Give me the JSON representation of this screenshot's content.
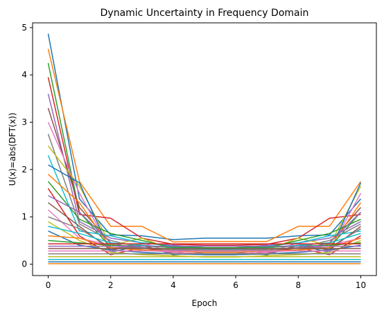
{
  "chart_data": {
    "type": "line",
    "title": "Dynamic Uncertainty in Frequency Domain",
    "xlabel": "Epoch",
    "ylabel": "U(x)=abs(DFT(x))",
    "xlim": [
      -0.5,
      10.5
    ],
    "ylim": [
      -0.24,
      5.1
    ],
    "x": [
      0,
      1,
      2,
      3,
      4,
      5,
      6,
      7,
      8,
      9,
      10
    ],
    "xticks": [
      0,
      2,
      4,
      6,
      8,
      10
    ],
    "yticks": [
      0,
      1,
      2,
      3,
      4,
      5
    ],
    "grid": false,
    "legend": "none",
    "colors": [
      "#1f77b4",
      "#ff7f0e",
      "#2ca02c",
      "#d62728",
      "#9467bd",
      "#8c564b",
      "#e377c2",
      "#7f7f7f",
      "#bcbd22",
      "#17becf"
    ],
    "series": [
      {
        "values": [
          4.87,
          1.38,
          0.62,
          0.6,
          0.52,
          0.55,
          0.55,
          0.55,
          0.6,
          0.62,
          1.38
        ]
      },
      {
        "values": [
          4.55,
          1.75,
          0.8,
          0.8,
          0.47,
          0.48,
          0.48,
          0.48,
          0.8,
          0.8,
          1.75
        ]
      },
      {
        "values": [
          4.25,
          1.1,
          0.35,
          0.3,
          0.3,
          0.28,
          0.28,
          0.3,
          0.3,
          0.35,
          1.1
        ]
      },
      {
        "values": [
          3.95,
          1.05,
          0.97,
          0.55,
          0.42,
          0.4,
          0.4,
          0.42,
          0.55,
          0.97,
          1.05
        ]
      },
      {
        "values": [
          3.6,
          0.9,
          0.55,
          0.45,
          0.4,
          0.35,
          0.35,
          0.4,
          0.45,
          0.55,
          0.9
        ]
      },
      {
        "values": [
          3.3,
          1.2,
          0.45,
          0.4,
          0.35,
          0.35,
          0.35,
          0.35,
          0.4,
          0.45,
          1.2
        ]
      },
      {
        "values": [
          3.0,
          1.5,
          0.3,
          0.45,
          0.25,
          0.3,
          0.3,
          0.25,
          0.45,
          0.3,
          1.5
        ]
      },
      {
        "values": [
          2.75,
          0.85,
          0.5,
          0.35,
          0.32,
          0.3,
          0.3,
          0.32,
          0.35,
          0.5,
          0.85
        ]
      },
      {
        "values": [
          2.5,
          1.65,
          0.4,
          0.55,
          0.3,
          0.28,
          0.28,
          0.3,
          0.55,
          0.4,
          1.65
        ]
      },
      {
        "values": [
          2.3,
          0.7,
          0.6,
          0.45,
          0.38,
          0.35,
          0.35,
          0.38,
          0.45,
          0.6,
          0.7
        ]
      },
      {
        "values": [
          2.1,
          1.72,
          0.25,
          0.4,
          0.2,
          0.25,
          0.25,
          0.2,
          0.4,
          0.25,
          1.72
        ]
      },
      {
        "values": [
          1.9,
          1.3,
          0.35,
          0.3,
          0.25,
          0.22,
          0.22,
          0.25,
          0.3,
          0.35,
          1.3
        ]
      },
      {
        "values": [
          1.75,
          0.95,
          0.65,
          0.5,
          0.35,
          0.33,
          0.33,
          0.35,
          0.5,
          0.65,
          0.95
        ]
      },
      {
        "values": [
          1.6,
          0.6,
          0.2,
          0.35,
          0.25,
          0.2,
          0.2,
          0.25,
          0.35,
          0.2,
          0.6
        ]
      },
      {
        "values": [
          1.45,
          1.1,
          0.45,
          0.3,
          0.28,
          0.25,
          0.25,
          0.28,
          0.3,
          0.45,
          1.1
        ]
      },
      {
        "values": [
          1.3,
          0.8,
          0.3,
          0.4,
          0.22,
          0.2,
          0.2,
          0.22,
          0.4,
          0.3,
          0.8
        ]
      },
      {
        "values": [
          1.15,
          0.55,
          0.4,
          0.3,
          0.25,
          0.22,
          0.22,
          0.25,
          0.3,
          0.4,
          0.55
        ]
      },
      {
        "values": [
          1.0,
          0.75,
          0.35,
          0.35,
          0.3,
          0.28,
          0.28,
          0.3,
          0.35,
          0.35,
          0.75
        ]
      },
      {
        "values": [
          0.9,
          0.5,
          0.25,
          0.2,
          0.18,
          0.15,
          0.15,
          0.18,
          0.2,
          0.25,
          0.5
        ]
      },
      {
        "values": [
          0.8,
          0.65,
          0.45,
          0.4,
          0.35,
          0.32,
          0.32,
          0.35,
          0.4,
          0.45,
          0.65
        ]
      },
      {
        "values": [
          0.7,
          0.4,
          0.3,
          0.25,
          0.22,
          0.2,
          0.2,
          0.22,
          0.25,
          0.3,
          0.4
        ]
      },
      {
        "values": [
          0.6,
          0.55,
          0.35,
          0.3,
          0.28,
          0.25,
          0.25,
          0.28,
          0.3,
          0.35,
          0.55
        ]
      },
      {
        "values": [
          0.5,
          0.45,
          0.4,
          0.38,
          0.36,
          0.35,
          0.35,
          0.36,
          0.38,
          0.4,
          0.45
        ]
      },
      {
        "values": [
          0.43,
          0.43,
          0.43,
          0.43,
          0.43,
          0.43,
          0.43,
          0.43,
          0.43,
          0.43,
          0.43
        ]
      },
      {
        "values": [
          0.38,
          0.38,
          0.38,
          0.38,
          0.38,
          0.38,
          0.38,
          0.38,
          0.38,
          0.38,
          0.38
        ]
      },
      {
        "values": [
          0.33,
          0.33,
          0.33,
          0.33,
          0.33,
          0.33,
          0.33,
          0.33,
          0.33,
          0.33,
          0.33
        ]
      },
      {
        "values": [
          0.28,
          0.28,
          0.28,
          0.28,
          0.28,
          0.28,
          0.28,
          0.28,
          0.28,
          0.28,
          0.28
        ]
      },
      {
        "values": [
          0.22,
          0.22,
          0.22,
          0.22,
          0.22,
          0.22,
          0.22,
          0.22,
          0.22,
          0.22,
          0.22
        ]
      },
      {
        "values": [
          0.16,
          0.16,
          0.16,
          0.16,
          0.16,
          0.16,
          0.16,
          0.16,
          0.16,
          0.16,
          0.16
        ]
      },
      {
        "values": [
          0.1,
          0.1,
          0.1,
          0.1,
          0.1,
          0.1,
          0.1,
          0.1,
          0.1,
          0.1,
          0.1
        ]
      },
      {
        "values": [
          0.05,
          0.05,
          0.05,
          0.05,
          0.05,
          0.05,
          0.05,
          0.05,
          0.05,
          0.05,
          0.05
        ]
      },
      {
        "values": [
          0.01,
          0.01,
          0.01,
          0.01,
          0.01,
          0.01,
          0.01,
          0.01,
          0.01,
          0.01,
          0.01
        ]
      }
    ]
  }
}
